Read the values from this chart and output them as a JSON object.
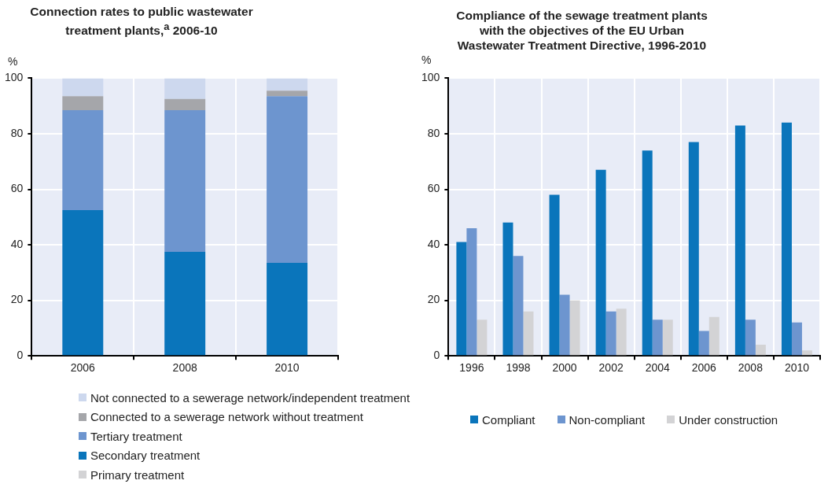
{
  "chart_data": [
    {
      "type": "bar",
      "title": "Connection rates to public wastewater treatment plants,$^{a}$ 2006-10",
      "ylabel": "%",
      "categories": [
        "2006",
        "2008",
        "2010"
      ],
      "stacked": true,
      "ylim": [
        0,
        100
      ],
      "yticks": [
        0,
        20,
        40,
        60,
        80,
        100
      ],
      "grid": true,
      "legend": "bottom",
      "series": [
        {
          "name": "Primary treatment",
          "color": "#d3d3d5",
          "values": [
            0,
            0,
            0
          ]
        },
        {
          "name": "Secondary treatment",
          "color": "#0a75bb",
          "values": [
            52.5,
            37.5,
            33.5
          ]
        },
        {
          "name": "Tertiary treatment",
          "color": "#6d95cf",
          "values": [
            36,
            51,
            60
          ]
        },
        {
          "name": "Connected to a sewerage network without treatment",
          "color": "#a5a6aa",
          "values": [
            5,
            4,
            2
          ]
        },
        {
          "name": "Not connected to a sewerage network/independent treatment",
          "color": "#cdd8ee",
          "values": [
            6.5,
            7.5,
            4.5
          ]
        }
      ]
    },
    {
      "type": "bar",
      "title": "Compliance of the sewage treatment plants with the objectives of the EU Urban Wastewater Treatment Directive, 1996-2010",
      "ylabel": "%",
      "categories": [
        "1996",
        "1998",
        "2000",
        "2002",
        "2004",
        "2006",
        "2008",
        "2010"
      ],
      "ylim": [
        0,
        100
      ],
      "yticks": [
        0,
        20,
        40,
        60,
        80,
        100
      ],
      "grid": true,
      "legend": "bottom",
      "series": [
        {
          "name": "Compliant",
          "color": "#0a75bb",
          "values": [
            41,
            48,
            58,
            67,
            74,
            77,
            83,
            84
          ]
        },
        {
          "name": "Non-compliant",
          "color": "#6d95cf",
          "values": [
            46,
            36,
            22,
            16,
            13,
            9,
            13,
            12
          ]
        },
        {
          "name": "Under construction",
          "color": "#d3d3d5",
          "values": [
            13,
            16,
            20,
            17,
            13,
            14,
            4,
            2
          ]
        }
      ]
    }
  ]
}
